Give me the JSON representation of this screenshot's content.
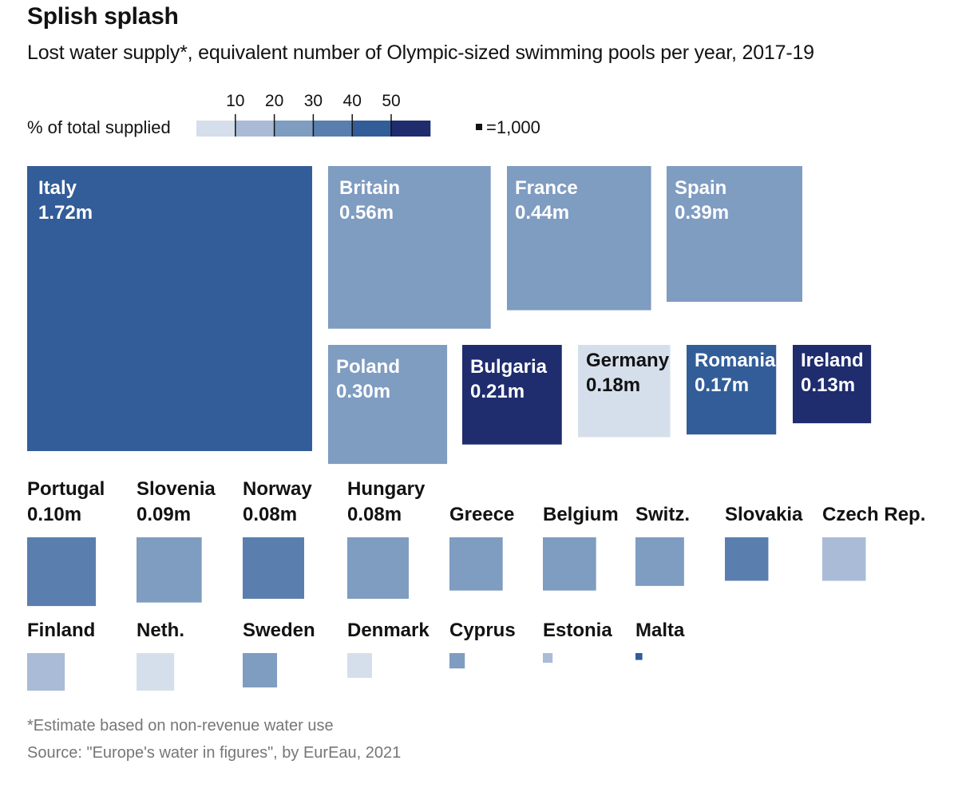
{
  "header": {
    "title": "Splish splash",
    "subtitle": "Lost water supply*, equivalent number of Olympic-sized swimming pools per year, 2017-19"
  },
  "legend": {
    "label": "% of total supplied",
    "ticks": [
      "10",
      "20",
      "30",
      "40",
      "50"
    ],
    "colors": [
      "#d5dfeb",
      "#a9bbd6",
      "#7f9cc1",
      "#5a7eae",
      "#325d98",
      "#1f2c6e"
    ],
    "unit_label": "=1,000"
  },
  "chart_data": {
    "type": "treemap",
    "title": "Splish splash",
    "subtitle": "Lost water supply*, equivalent number of Olympic-sized swimming pools per year, 2017-19",
    "unit": "Olympic-sized swimming pools per year",
    "color_scale": {
      "label": "% of total supplied",
      "breaks": [
        10,
        20,
        30,
        40,
        50
      ]
    },
    "items": [
      {
        "country": "Italy",
        "label": "1.72m",
        "value": 1720000,
        "color": "#325d98",
        "row": 1
      },
      {
        "country": "Britain",
        "label": "0.56m",
        "value": 560000,
        "color": "#7f9cc1",
        "row": 1
      },
      {
        "country": "France",
        "label": "0.44m",
        "value": 440000,
        "color": "#7f9cc1",
        "row": 1
      },
      {
        "country": "Spain",
        "label": "0.39m",
        "value": 390000,
        "color": "#7f9cc1",
        "row": 1
      },
      {
        "country": "Poland",
        "label": "0.30m",
        "value": 300000,
        "color": "#7f9cc1",
        "row": 2
      },
      {
        "country": "Bulgaria",
        "label": "0.21m",
        "value": 210000,
        "color": "#1f2c6e",
        "row": 2
      },
      {
        "country": "Germany",
        "label": "0.18m",
        "value": 180000,
        "color": "#d5dfeb",
        "row": 2
      },
      {
        "country": "Romania",
        "label": "0.17m",
        "value": 170000,
        "color": "#325d98",
        "row": 2
      },
      {
        "country": "Ireland",
        "label": "0.13m",
        "value": 130000,
        "color": "#1f2c6e",
        "row": 2
      },
      {
        "country": "Portugal",
        "label": "0.10m",
        "value": 100000,
        "color": "#5a7eae",
        "row": 3
      },
      {
        "country": "Slovenia",
        "label": "0.09m",
        "value": 90000,
        "color": "#7f9cc1",
        "row": 3
      },
      {
        "country": "Norway",
        "label": "0.08m",
        "value": 80000,
        "color": "#5a7eae",
        "row": 3
      },
      {
        "country": "Hungary",
        "label": "0.08m",
        "value": 80000,
        "color": "#7f9cc1",
        "row": 3
      },
      {
        "country": "Greece",
        "label": "",
        "value": 60000,
        "color": "#7f9cc1",
        "row": 3
      },
      {
        "country": "Belgium",
        "label": "",
        "value": 60000,
        "color": "#7f9cc1",
        "row": 3
      },
      {
        "country": "Switz.",
        "label": "",
        "value": 50000,
        "color": "#7f9cc1",
        "row": 3
      },
      {
        "country": "Slovakia",
        "label": "",
        "value": 40000,
        "color": "#5a7eae",
        "row": 3
      },
      {
        "country": "Czech Rep.",
        "label": "",
        "value": 40000,
        "color": "#a9bbd6",
        "row": 3
      },
      {
        "country": "Finland",
        "label": "",
        "value": 30000,
        "color": "#a9bbd6",
        "row": 4
      },
      {
        "country": "Neth.",
        "label": "",
        "value": 30000,
        "color": "#d5dfeb",
        "row": 4
      },
      {
        "country": "Sweden",
        "label": "",
        "value": 25000,
        "color": "#7f9cc1",
        "row": 4
      },
      {
        "country": "Denmark",
        "label": "",
        "value": 13000,
        "color": "#d5dfeb",
        "row": 4
      },
      {
        "country": "Cyprus",
        "label": "",
        "value": 5000,
        "color": "#7f9cc1",
        "row": 4
      },
      {
        "country": "Estonia",
        "label": "",
        "value": 2000,
        "color": "#a9bbd6",
        "row": 4
      },
      {
        "country": "Malta",
        "label": "",
        "value": 1000,
        "color": "#325d98",
        "row": 4
      }
    ]
  },
  "footer": {
    "footnote": "*Estimate based on non-revenue water use",
    "source": "Source: \"Europe's water in figures\", by EurEau, 2021"
  }
}
